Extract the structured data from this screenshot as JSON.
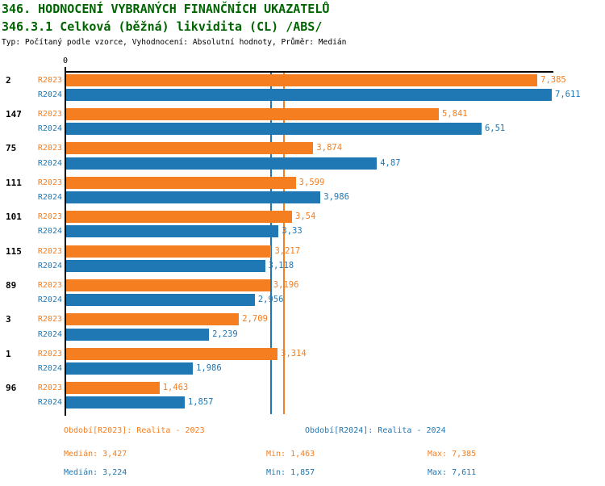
{
  "header": {
    "title_line1": "346. HODNOCENÍ VYBRANÝCH FINANČNÍCH UKAZATELŮ",
    "title_line2": "346.3.1 Celková (běžná) likvidita (CL) /ABS/",
    "meta_line": "Typ: Počítaný podle vzorce, Vyhodnocení: Absolutní hodnoty, Průměr: Medián"
  },
  "colors": {
    "title_green": "#006400",
    "r2023_orange": "#F57E20",
    "r2024_blue": "#1F77B4",
    "axis_black": "#000000"
  },
  "chart_data": {
    "type": "bar",
    "orientation": "horizontal",
    "title": "346.3.1 Celková (běžná) likvidita (CL) /ABS/",
    "value_axis": {
      "zero_label": "0",
      "min": 0,
      "max": 7.65,
      "position": "top"
    },
    "grid": false,
    "legend_position": "none",
    "categories": [
      "2",
      "147",
      "75",
      "111",
      "101",
      "115",
      "89",
      "3",
      "1",
      "96"
    ],
    "series": [
      {
        "name": "R2023",
        "color": "#F57E20",
        "values": [
          7.385,
          5.841,
          3.874,
          3.599,
          3.54,
          3.217,
          3.196,
          2.709,
          3.314,
          1.463
        ],
        "value_labels": [
          "7,385",
          "5,841",
          "3,874",
          "3,599",
          "3,54",
          "3,217",
          "3,196",
          "2,709",
          "3,314",
          "1,463"
        ]
      },
      {
        "name": "R2024",
        "color": "#1F77B4",
        "values": [
          7.611,
          6.51,
          4.87,
          3.986,
          3.33,
          3.118,
          2.956,
          2.239,
          1.986,
          1.857
        ],
        "value_labels": [
          "7,611",
          "6,51",
          "4,87",
          "3,986",
          "3,33",
          "3,118",
          "2,956",
          "2,239",
          "1,986",
          "1,857"
        ]
      }
    ],
    "median_lines": [
      {
        "series": "R2023",
        "value": 3.427,
        "color": "#F57E20"
      },
      {
        "series": "R2024",
        "value": 3.224,
        "color": "#1F77B4"
      }
    ]
  },
  "footer": {
    "period_r2023": "Období[R2023]: Realita - 2023",
    "period_r2024": "Období[R2024]: Realita - 2024",
    "median_r2023": "Medián: 3,427",
    "min_r2023": "Min: 1,463",
    "max_r2023": "Max: 7,385",
    "median_r2024": "Medián: 3,224",
    "min_r2024": "Min: 1,857",
    "max_r2024": "Max: 7,611"
  }
}
